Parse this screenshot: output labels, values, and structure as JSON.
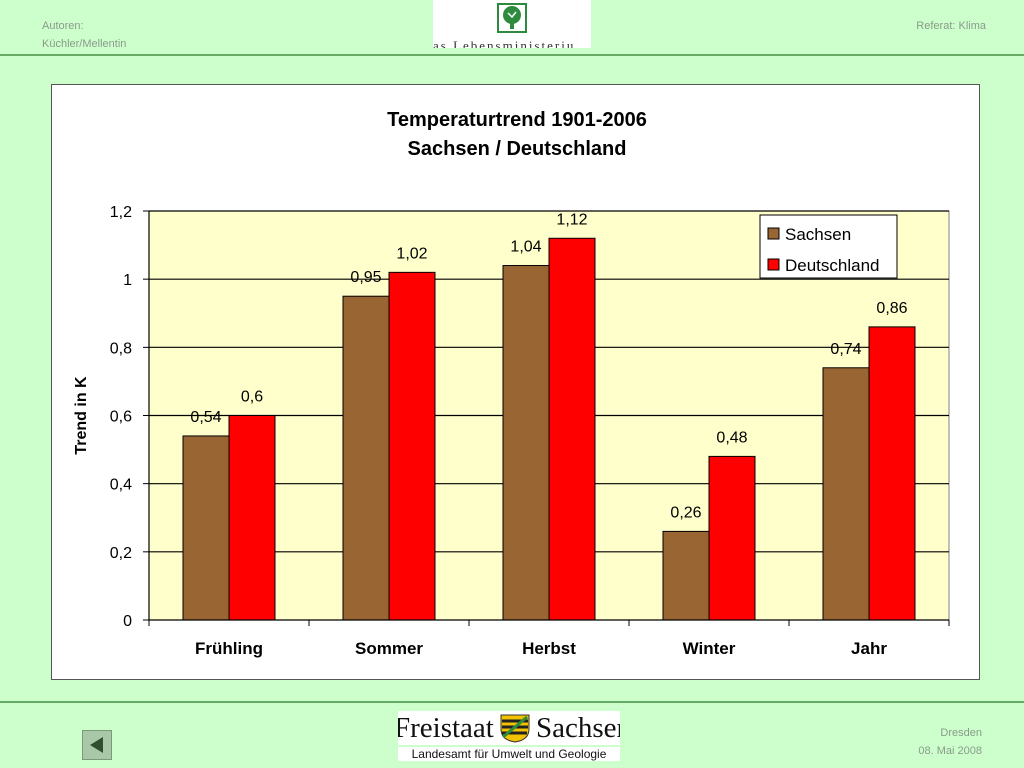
{
  "header": {
    "authors_label": "Autoren:",
    "authors_names": "Küchler/Mellentin",
    "department": "Referat: Klima",
    "ministry_logo_text": "as Lebensministeriu",
    "ministry_logo_icon": "tree-leaf-icon"
  },
  "footer": {
    "logo_word_left": "Freistaat",
    "logo_word_right": "Sachsen",
    "logo_icon": "saxony-crest-icon",
    "agency": "Landesamt für Umwelt und Geologie",
    "location": "Dresden",
    "date": "08. Mai 2008",
    "back_icon": "triangle-left-icon"
  },
  "chart_data": {
    "type": "bar",
    "title": "Temperaturtrend 1901-2006",
    "subtitle": "Sachsen / Deutschland",
    "xlabel": "",
    "ylabel": "Trend in K",
    "categories": [
      "Frühling",
      "Sommer",
      "Herbst",
      "Winter",
      "Jahr"
    ],
    "series": [
      {
        "name": "Sachsen",
        "color": "#996633",
        "values": [
          0.54,
          0.95,
          1.04,
          0.26,
          0.74
        ],
        "labels": [
          "0,54",
          "0,95",
          "1,04",
          "0,26",
          "0,74"
        ]
      },
      {
        "name": "Deutschland",
        "color": "#ff0000",
        "values": [
          0.6,
          1.02,
          1.12,
          0.48,
          0.86
        ],
        "labels": [
          "0,6",
          "1,02",
          "1,12",
          "0,48",
          "0,86"
        ]
      }
    ],
    "ylim": [
      0,
      1.2
    ],
    "yticks": [
      0,
      0.2,
      0.4,
      0.6,
      0.8,
      1,
      1.2
    ],
    "ytick_labels": [
      "0",
      "0,2",
      "0,4",
      "0,6",
      "0,8",
      "1",
      "1,2"
    ],
    "grid": true,
    "legend": "top-right",
    "plot_background": "#ffffcc"
  }
}
